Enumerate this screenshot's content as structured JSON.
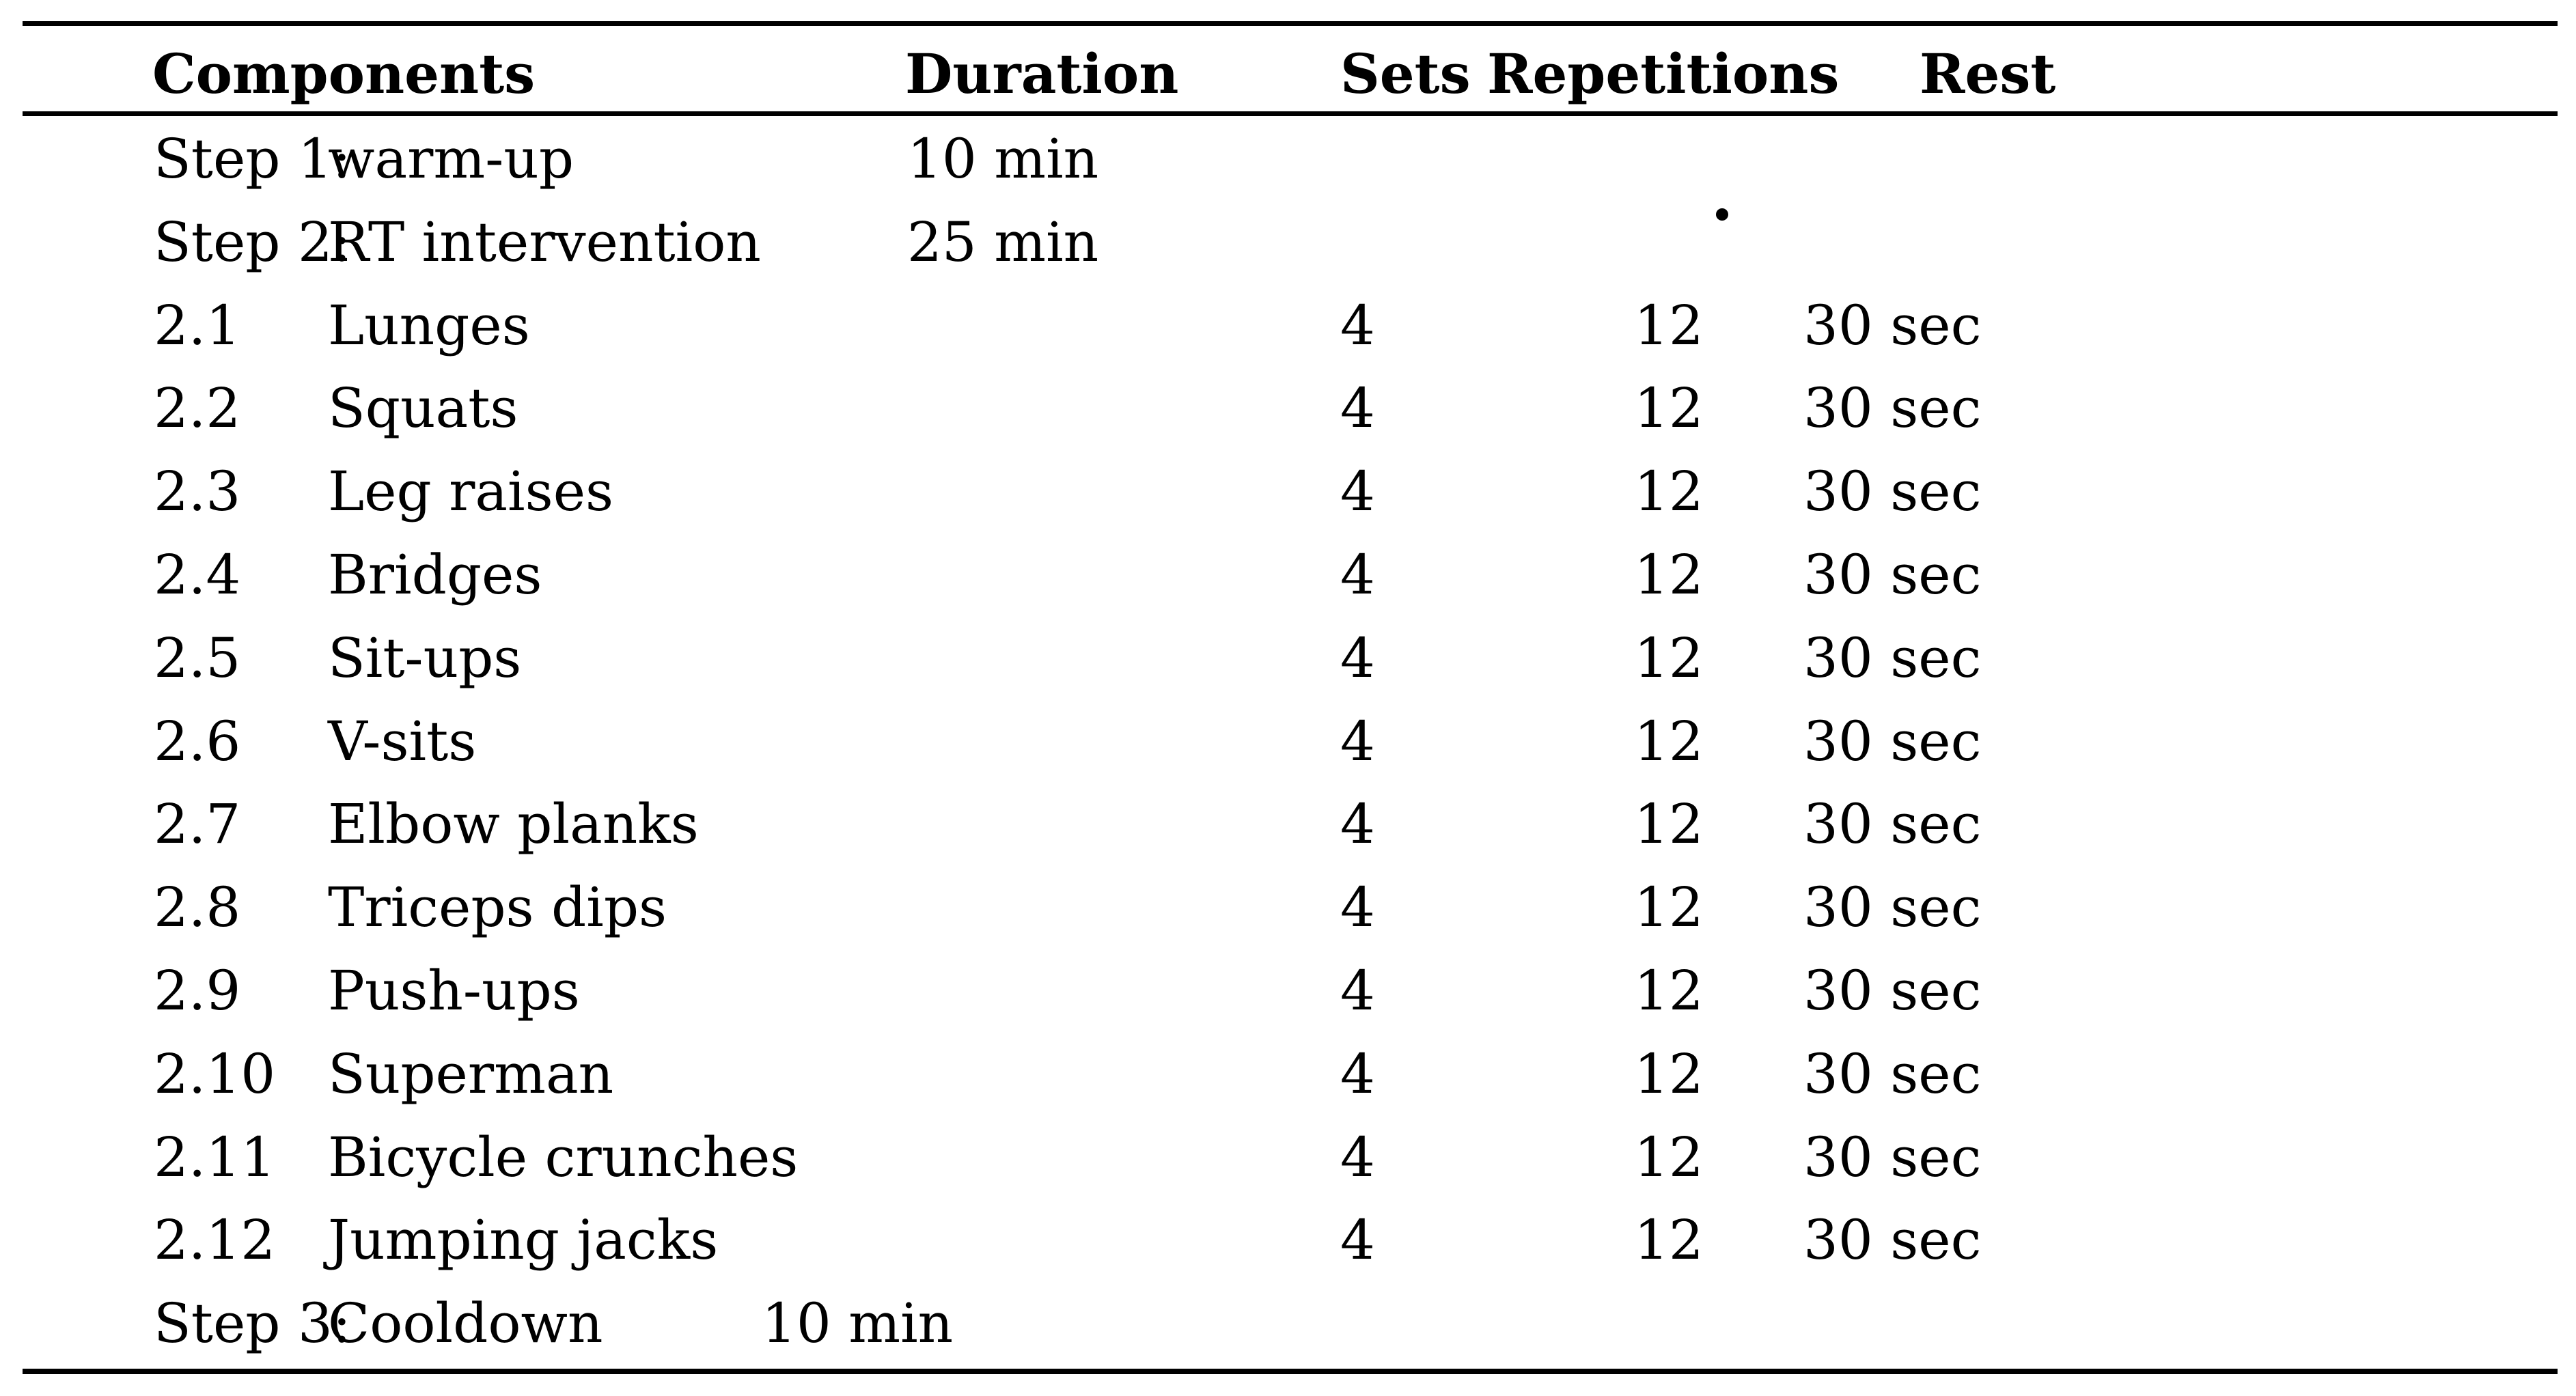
{
  "table": {
    "columns": [
      "Components",
      "Duration",
      "Sets",
      "Repetitions",
      "Rest"
    ],
    "rows": [
      {
        "label": "Step 1:",
        "name": "warm-up",
        "duration": "10 min"
      },
      {
        "label": "Step 2:",
        "name": "RT intervention",
        "duration": "25 min"
      },
      {
        "label": "2.1",
        "name": "Lunges",
        "sets": "4",
        "reps": "12",
        "rest": "30 sec"
      },
      {
        "label": "2.2",
        "name": "Squats",
        "sets": "4",
        "reps": "12",
        "rest": "30 sec"
      },
      {
        "label": "2.3",
        "name": "Leg raises",
        "sets": "4",
        "reps": "12",
        "rest": "30 sec"
      },
      {
        "label": "2.4",
        "name": "Bridges",
        "sets": "4",
        "reps": "12",
        "rest": "30 sec"
      },
      {
        "label": "2.5",
        "name": "Sit-ups",
        "sets": "4",
        "reps": "12",
        "rest": "30 sec"
      },
      {
        "label": "2.6",
        "name": "V-sits",
        "sets": "4",
        "reps": "12",
        "rest": "30 sec"
      },
      {
        "label": "2.7",
        "name": "Elbow planks",
        "sets": "4",
        "reps": "12",
        "rest": "30 sec"
      },
      {
        "label": "2.8",
        "name": "Triceps dips",
        "sets": "4",
        "reps": "12",
        "rest": "30 sec"
      },
      {
        "label": "2.9",
        "name": "Push-ups",
        "sets": "4",
        "reps": "12",
        "rest": "30 sec"
      },
      {
        "label": "2.10",
        "name": "Superman",
        "sets": "4",
        "reps": "12",
        "rest": "30 sec"
      },
      {
        "label": "2.11",
        "name": "Bicycle crunches",
        "sets": "4",
        "reps": "12",
        "rest": "30 sec"
      },
      {
        "label": "2.12",
        "name": "Jumping jacks",
        "sets": "4",
        "reps": "12",
        "rest": "30 sec"
      },
      {
        "label": "Step 3:",
        "name": "Cooldown",
        "duration": "10 min",
        "duration_indent": true
      }
    ],
    "stray_mark": "dot",
    "colors": {
      "text": "#000000",
      "background": "#ffffff",
      "rule": "#000000"
    }
  }
}
